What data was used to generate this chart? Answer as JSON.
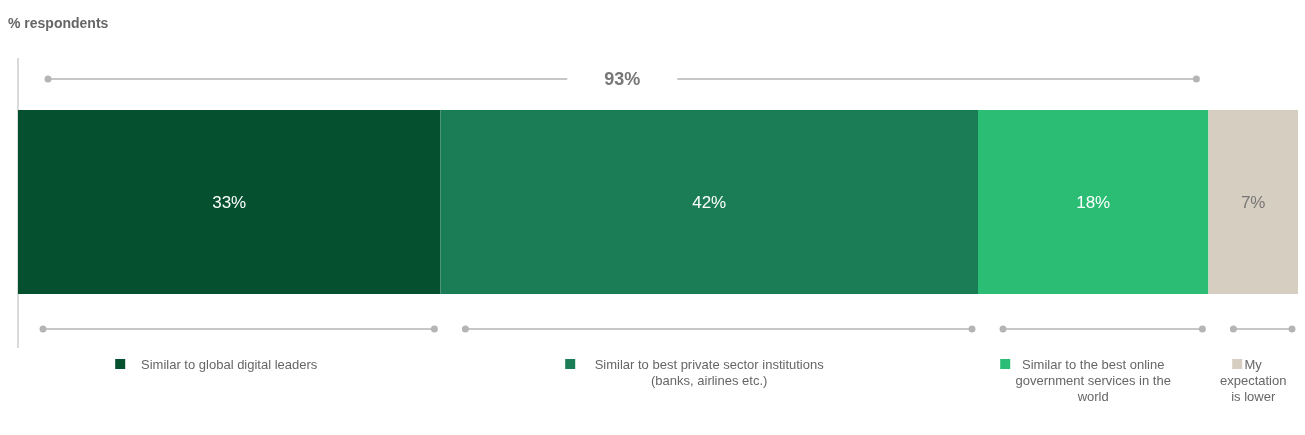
{
  "chart_data": {
    "type": "bar",
    "orientation": "horizontal",
    "stacked": true,
    "title": "% respondents",
    "categories": [
      null
    ],
    "xlim": [
      0,
      100
    ],
    "legend": "bottom",
    "annotations": [
      "93%"
    ],
    "series": [
      {
        "name": "Similar to global digital leaders",
        "color": "#04502f",
        "values": [
          33
        ],
        "value_labels": [
          "33%"
        ]
      },
      {
        "name": "Similar to best private sector institutions (banks, airlines etc.)",
        "color": "#1b7d56",
        "values": [
          42
        ],
        "value_labels": [
          "42%"
        ]
      },
      {
        "name": "Similar to the best online government services in the world",
        "color": "#2bbd74",
        "values": [
          18
        ],
        "value_labels": [
          "18%"
        ]
      },
      {
        "name": "My expectation is lower",
        "color": "#d6cec0",
        "values": [
          7
        ],
        "value_labels": [
          "7%"
        ]
      }
    ]
  }
}
